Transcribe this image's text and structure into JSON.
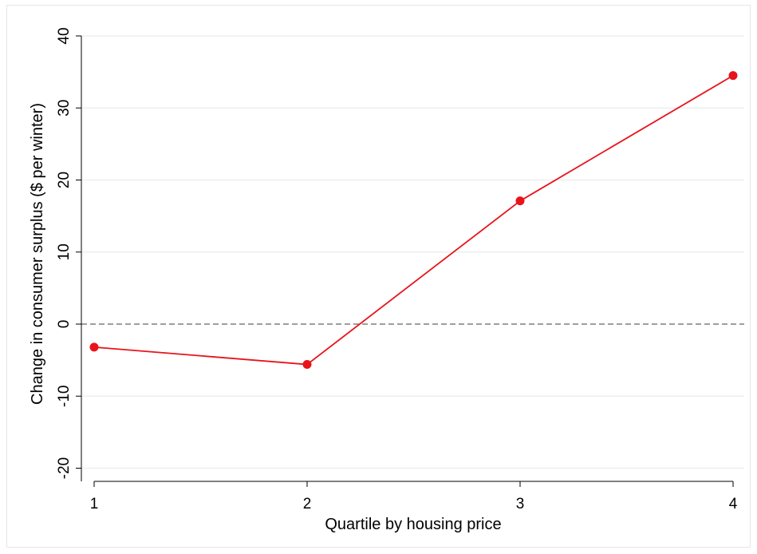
{
  "chart_data": {
    "type": "line",
    "title": "",
    "xlabel": "Quartile by housing price",
    "ylabel": "Change in consumer surplus ($ per winter)",
    "x": [
      1,
      2,
      3,
      4
    ],
    "series": [
      {
        "values": [
          -3.2,
          -5.6,
          17.1,
          34.5
        ]
      }
    ],
    "xlim": [
      1,
      4
    ],
    "ylim": [
      -22,
      42
    ],
    "xticks": [
      1,
      2,
      3,
      4
    ],
    "yticks": [
      -20,
      -10,
      0,
      10,
      20,
      30,
      40
    ],
    "xtick_labels": [
      "1",
      "2",
      "3",
      "4"
    ],
    "ytick_labels": [
      "-20",
      "-10",
      "0",
      "10",
      "20",
      "30",
      "40"
    ],
    "reference_line": {
      "y": 0,
      "style": "dashed"
    },
    "grid": "horizontal",
    "colors": {
      "series": "#e8131b",
      "marker": "#e8131b",
      "reference_line": "#7f7f7f",
      "grid": "#e6eeee",
      "axis": "#000000"
    }
  }
}
